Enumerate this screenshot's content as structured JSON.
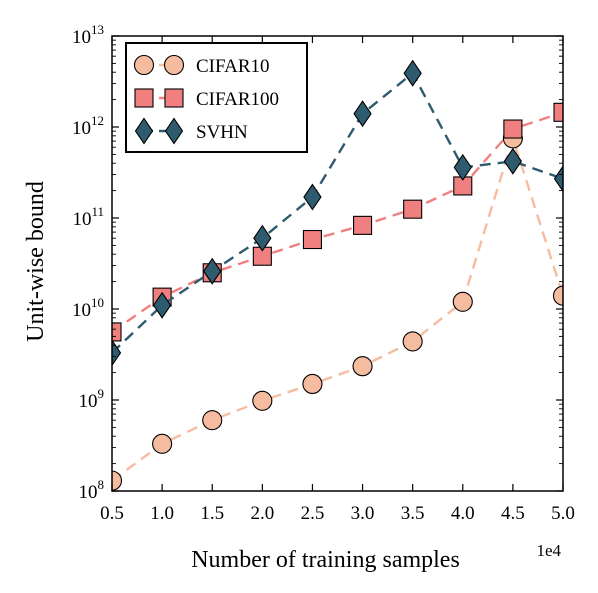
{
  "chart_data": {
    "type": "line",
    "xlabel": "Number of training samples",
    "ylabel": "Unit-wise bound",
    "x_offset_label": "1e4",
    "x": [
      0.5,
      1.0,
      1.5,
      2.0,
      2.5,
      3.0,
      3.5,
      4.0,
      4.5,
      5.0
    ],
    "x_tick_labels": [
      "0.5",
      "1.0",
      "1.5",
      "2.0",
      "2.5",
      "3.0",
      "3.5",
      "4.0",
      "4.5",
      "5.0"
    ],
    "xlim": [
      0.5,
      5.0
    ],
    "yscale": "log",
    "ylim": [
      100000000,
      10000000000000
    ],
    "y_ticks": [
      {
        "base": "10",
        "exp": "8",
        "value": 100000000
      },
      {
        "base": "10",
        "exp": "9",
        "value": 1000000000
      },
      {
        "base": "10",
        "exp": "10",
        "value": 10000000000
      },
      {
        "base": "10",
        "exp": "11",
        "value": 100000000000
      },
      {
        "base": "10",
        "exp": "12",
        "value": 1000000000000
      },
      {
        "base": "10",
        "exp": "13",
        "value": 10000000000000
      }
    ],
    "grid": false,
    "legend_position": "top-left",
    "series": [
      {
        "name": "CIFAR10",
        "marker": "circle",
        "color": "#f5bca0",
        "values": [
          130000000,
          330000000,
          600000000,
          980000000,
          1500000000,
          2350000000,
          4400000000,
          12000000000,
          750000000000,
          14000000000
        ]
      },
      {
        "name": "CIFAR100",
        "marker": "square",
        "color": "#f08080",
        "values": [
          5600000000,
          13500000000,
          25000000000,
          38000000000,
          58000000000,
          83000000000,
          125000000000,
          225000000000,
          950000000000,
          1450000000000
        ]
      },
      {
        "name": "SVHN",
        "marker": "diamond",
        "color": "#2e5b6e",
        "values": [
          3300000000,
          11000000000,
          26000000000,
          60000000000,
          170000000000,
          1400000000000,
          3900000000000,
          360000000000,
          420000000000,
          270000000000
        ]
      }
    ]
  }
}
